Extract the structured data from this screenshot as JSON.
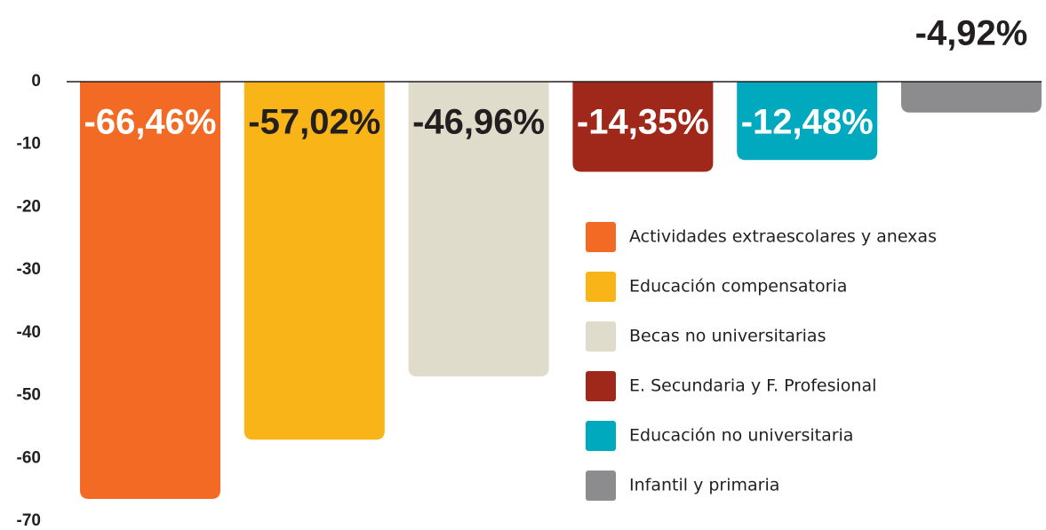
{
  "chart_data": {
    "type": "bar",
    "categories": [
      "Actividades extraescolares y anexas",
      "Educación compensatoria",
      "Becas no universitarias",
      "E. Secundaria y F. Profesional",
      "Educación no universitaria",
      "Infantil y primaria"
    ],
    "values": [
      -66.46,
      -57.02,
      -46.96,
      -14.35,
      -12.48,
      -4.92
    ],
    "value_labels": [
      "-66,46%",
      "-57,02%",
      "-46,96%",
      "-14,35%",
      "-12,48%",
      "-4,92%"
    ],
    "colors": [
      "#f26a24",
      "#f9b418",
      "#dfdccb",
      "#a0281a",
      "#00a9bd",
      "#8c8c8e"
    ],
    "ylim": [
      -70,
      0
    ],
    "yticks": [
      0,
      -10,
      -20,
      -30,
      -40,
      -50,
      -60,
      -70
    ],
    "legend": "right"
  }
}
